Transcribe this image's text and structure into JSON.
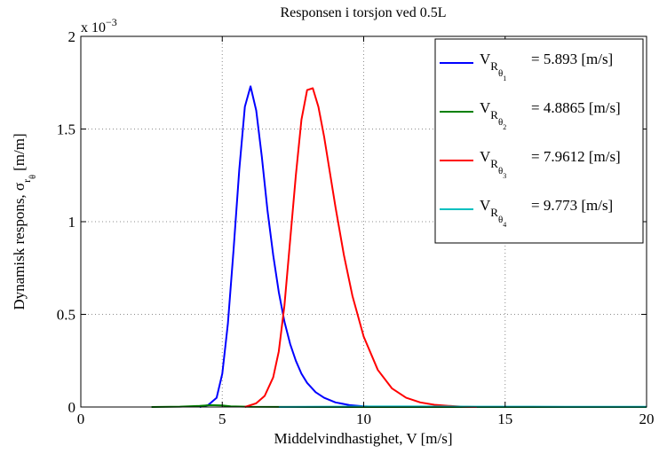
{
  "chart_data": {
    "type": "line",
    "title": "Responsen i torsjon ved 0.5L",
    "xlabel": "Middelvindhastighet, V [m/s]",
    "ylabel": {
      "main": "Dynamisk respons, σ",
      "sub": "r",
      "subsub": "θ",
      "unit": " [m/m]"
    },
    "y_multiplier": "x 10",
    "y_multiplier_exp": "−3",
    "xlim": [
      0,
      20
    ],
    "ylim": [
      0,
      2
    ],
    "xticks": [
      0,
      5,
      10,
      15,
      20
    ],
    "yticks": [
      0,
      0.5,
      1,
      1.5,
      2
    ],
    "ytick_labels": [
      "0",
      "0.5",
      "1",
      "1.5",
      "2"
    ],
    "xtick_labels": [
      "0",
      "5",
      "10",
      "15",
      "20"
    ],
    "grid": true,
    "legend_position": "top-right",
    "series": [
      {
        "name": "= 5.893 [m/s]",
        "sym_sub": "R",
        "sym_subsub": "θ",
        "index": "1",
        "color": "#0000ff",
        "x": [
          4.2,
          4.5,
          4.8,
          5.0,
          5.2,
          5.4,
          5.6,
          5.8,
          6.0,
          6.2,
          6.4,
          6.6,
          6.8,
          7.0,
          7.2,
          7.4,
          7.6,
          7.8,
          8.0,
          8.3,
          8.6,
          9.0,
          9.5,
          10.0,
          10.5
        ],
        "y": [
          0.0,
          0.01,
          0.05,
          0.18,
          0.45,
          0.85,
          1.28,
          1.62,
          1.73,
          1.6,
          1.35,
          1.06,
          0.82,
          0.62,
          0.46,
          0.34,
          0.25,
          0.18,
          0.13,
          0.08,
          0.05,
          0.025,
          0.01,
          0.004,
          0.0
        ]
      },
      {
        "name": "= 4.8865 [m/s]",
        "sym_sub": "R",
        "sym_subsub": "θ",
        "index": "2",
        "color": "#008000",
        "x": [
          2.5,
          3.5,
          4.2,
          4.6,
          5.0,
          5.3,
          6.0,
          8.0,
          10.0,
          20.0
        ],
        "y": [
          0.0,
          0.002,
          0.006,
          0.01,
          0.008,
          0.004,
          0.001,
          0.0,
          0.0,
          0.0
        ]
      },
      {
        "name": "= 7.9612 [m/s]",
        "sym_sub": "R",
        "sym_subsub": "θ",
        "index": "3",
        "color": "#ff0000",
        "x": [
          5.8,
          6.2,
          6.5,
          6.8,
          7.0,
          7.2,
          7.4,
          7.6,
          7.8,
          8.0,
          8.2,
          8.4,
          8.6,
          8.8,
          9.0,
          9.3,
          9.6,
          10.0,
          10.5,
          11.0,
          11.5,
          12.0,
          12.5,
          13.0,
          13.5,
          14.0
        ],
        "y": [
          0.0,
          0.02,
          0.06,
          0.16,
          0.3,
          0.55,
          0.9,
          1.25,
          1.55,
          1.71,
          1.72,
          1.62,
          1.46,
          1.27,
          1.08,
          0.82,
          0.6,
          0.38,
          0.2,
          0.1,
          0.05,
          0.025,
          0.012,
          0.006,
          0.002,
          0.0
        ]
      },
      {
        "name": "= 9.773 [m/s]",
        "sym_sub": "R",
        "sym_subsub": "θ",
        "index": "4",
        "color": "#00bfbf",
        "x": [
          7.0,
          8.0,
          9.0,
          10.0,
          11.0,
          12.0,
          14.0,
          16.0,
          18.0,
          20.0
        ],
        "y": [
          0.0,
          0.001,
          0.002,
          0.003,
          0.003,
          0.003,
          0.002,
          0.002,
          0.001,
          0.001
        ]
      }
    ]
  }
}
